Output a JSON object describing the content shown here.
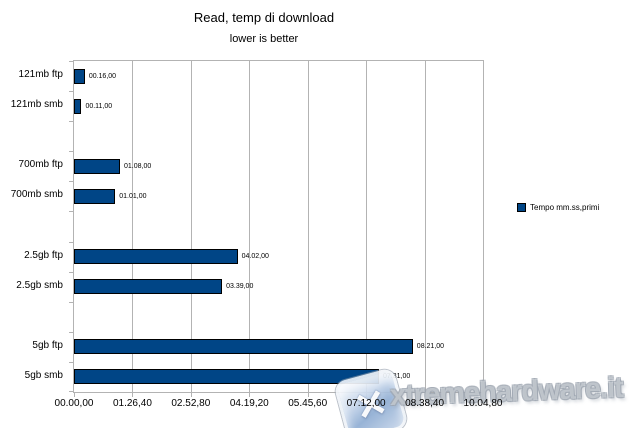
{
  "header": {
    "title": "Read, temp di download",
    "subtitle": "lower is better"
  },
  "legend": {
    "label": "Tempo mm.ss,primi",
    "swatch_color": "#004586"
  },
  "watermark": {
    "text": "xtremehardware.it",
    "logo_glyph": "✕"
  },
  "chart_data": {
    "type": "bar",
    "orientation": "horizontal",
    "title": "Read, temp di download",
    "subtitle": "lower is better",
    "grid": "vertical",
    "legend_position": "right",
    "legend_entries": [
      {
        "name": "Tempo mm.ss,primi",
        "color": "#004586"
      }
    ],
    "bar_color": "#004586",
    "bar_border_color": "#000000",
    "grid_color": "#b3b3b3",
    "x_axis": {
      "format": "mm.ss,hh (minutes.seconds,hundredths)",
      "range_seconds": [
        0,
        604.8
      ],
      "tick_seconds": [
        0,
        86.4,
        172.8,
        259.2,
        345.6,
        432.0,
        518.4,
        604.8
      ],
      "tick_labels": [
        "00.00,00",
        "01.26,40",
        "02.52,80",
        "04.19,20",
        "05.45,60",
        "07.12,00",
        "08.38,40",
        "10.04,80"
      ]
    },
    "bars": [
      {
        "category": "121mb ftp",
        "group": "121mb",
        "value_seconds": 16,
        "value_label": "00.16,00"
      },
      {
        "category": "121mb smb",
        "group": "121mb",
        "value_seconds": 11,
        "value_label": "00.11,00"
      },
      {
        "category": "700mb ftp",
        "group": "700mb",
        "value_seconds": 68,
        "value_label": "01.08,00"
      },
      {
        "category": "700mb smb",
        "group": "700mb",
        "value_seconds": 61,
        "value_label": "01.01,00"
      },
      {
        "category": "2.5gb ftp",
        "group": "2.5gb",
        "value_seconds": 242,
        "value_label": "04.02,00"
      },
      {
        "category": "2.5gb smb",
        "group": "2.5gb",
        "value_seconds": 219,
        "value_label": "03.39,00"
      },
      {
        "category": "5gb ftp",
        "group": "5gb",
        "value_seconds": 501,
        "value_label": "08.21,00"
      },
      {
        "category": "5gb smb",
        "group": "5gb",
        "value_seconds": 451,
        "value_label": "07.31,00"
      }
    ]
  }
}
